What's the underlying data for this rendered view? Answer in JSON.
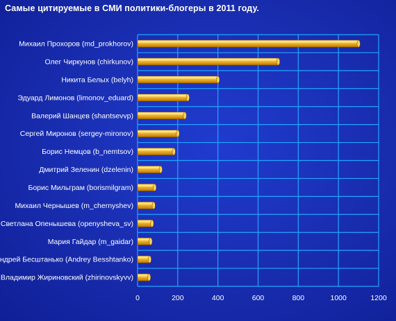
{
  "chart_data": {
    "type": "bar",
    "orientation": "horizontal",
    "title": "Самые цитируемые в СМИ политики-блогеры в 2011 году.",
    "categories": [
      "Михаил Прохоров (md_prokhorov)",
      "Олег Чиркунов (chirkunov)",
      "Никита Белых (belyh)",
      "Эдуард Лимонов (limonov_eduard)",
      "Валерий Шанцев (shantsevvp)",
      "Сергей Миронов (sergey-mironov)",
      "Борис Немцов (b_nemtsov)",
      "Дмитрий Зеленин (dzelenin)",
      "Борис Мильграм (borismilgram)",
      "Михаил Чернышев (m_chernyshev)",
      "Светлана Опенышева (openysheva_sv)",
      "Мария Гайдар (m_gaidar)",
      "Андрей Бесштанько (Andrey Besshtanko)",
      "Владимир Жириновский (zhirinovskyvv)"
    ],
    "values": [
      1100,
      700,
      400,
      250,
      235,
      200,
      180,
      115,
      85,
      80,
      72,
      65,
      60,
      57
    ],
    "xlim": [
      0,
      1200
    ],
    "xticks": [
      "0",
      "200",
      "400",
      "600",
      "800",
      "1000",
      "1200"
    ],
    "grid": true,
    "colors": {
      "bar_light": "#ffe98a",
      "bar_mid": "#f2b62a",
      "bar_dark": "#b87708",
      "grid": "#23a6ff",
      "background": "#1a2fb4"
    }
  }
}
